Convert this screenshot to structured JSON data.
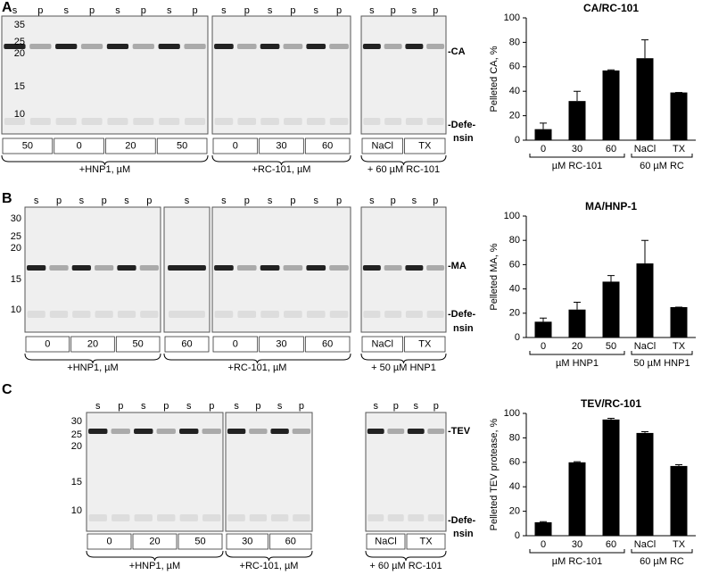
{
  "panels": [
    {
      "letter": "A",
      "mw": [
        "35",
        "25",
        "20",
        "15",
        "10"
      ],
      "gels": [
        {
          "lanes": [
            "s",
            "p",
            "s",
            "p",
            "s",
            "p",
            "s",
            "p"
          ],
          "conditions": [
            "50",
            "0",
            "20",
            "50"
          ]
        },
        {
          "lanes": [
            "s",
            "p",
            "s",
            "p",
            "s",
            "p"
          ],
          "conditions": [
            "0",
            "30",
            "60"
          ]
        },
        {
          "lanes": [
            "s",
            "p",
            "s",
            "p"
          ],
          "conditions": [
            "NaCl",
            "TX"
          ]
        }
      ],
      "groups": [
        "+HNP1, µM",
        "+RC-101, µM",
        "+ 60 µM RC-101"
      ],
      "bands": [
        "-CA",
        "-Defe-",
        "nsin"
      ]
    },
    {
      "letter": "B",
      "mw": [
        "30",
        "25",
        "20",
        "15",
        "10"
      ],
      "gels": [
        {
          "lanes": [
            "s",
            "p",
            "s",
            "p",
            "s",
            "p"
          ],
          "conditions": [
            "0",
            "20",
            "50"
          ]
        },
        {
          "lanes": [
            "s"
          ],
          "conditions": [
            "60"
          ]
        },
        {
          "lanes": [
            "s",
            "p",
            "s",
            "p",
            "s",
            "p"
          ],
          "conditions": [
            "0",
            "30",
            "60"
          ]
        },
        {
          "lanes": [
            "s",
            "p",
            "s",
            "p"
          ],
          "conditions": [
            "NaCl",
            "TX"
          ]
        }
      ],
      "groups": [
        "+HNP1, µM",
        "+RC-101, µM",
        "+ 50 µM HNP1"
      ],
      "bands": [
        "-MA",
        "-Defe-",
        "nsin"
      ]
    },
    {
      "letter": "C",
      "mw": [
        "30",
        "25",
        "20",
        "15",
        "10"
      ],
      "gels": [
        {
          "lanes": [
            "s",
            "p",
            "s",
            "p",
            "s",
            "p"
          ],
          "conditions": [
            "0",
            "20",
            "50"
          ]
        },
        {
          "lanes": [
            "s",
            "p",
            "s",
            "p"
          ],
          "conditions": [
            "30",
            "60"
          ]
        },
        {
          "lanes": [
            "s",
            "p",
            "s",
            "p"
          ],
          "conditions": [
            "NaCl",
            "TX"
          ]
        }
      ],
      "groups": [
        "+HNP1, µM",
        "+RC-101, µM",
        "+ 60 µM RC-101"
      ],
      "bands": [
        "-TEV",
        "-Defe-",
        "nsin"
      ]
    }
  ],
  "chart_data": [
    {
      "type": "bar",
      "title": "CA/RC-101",
      "y_label": "Pelleted CA, %",
      "categories": [
        "0",
        "30",
        "60",
        "NaCl",
        "TX"
      ],
      "values": [
        9,
        32,
        57,
        67,
        39
      ],
      "errors": [
        5,
        8,
        0.5,
        15,
        0
      ],
      "groups": [
        "µM RC-101",
        "60 µM RC"
      ],
      "color": "#000000",
      "ylim": [
        0,
        100
      ],
      "yticks": [
        0,
        20,
        40,
        60,
        80,
        100
      ]
    },
    {
      "type": "bar",
      "title": "MA/HNP-1",
      "y_label": "Pelleted MA, %",
      "categories": [
        "0",
        "20",
        "50",
        "NaCl",
        "TX"
      ],
      "values": [
        13,
        23,
        46,
        61,
        25
      ],
      "errors": [
        3,
        6,
        5,
        19,
        0
      ],
      "groups": [
        "µM HNP1",
        "50 µM HNP1"
      ],
      "color": "#000000",
      "ylim": [
        0,
        100
      ],
      "yticks": [
        0,
        20,
        40,
        60,
        80,
        100
      ]
    },
    {
      "type": "bar",
      "title": "TEV/RC-101",
      "y_label": "Pelleted TEV protease, %",
      "categories": [
        "0",
        "30",
        "60",
        "NaCl",
        "TX"
      ],
      "values": [
        11,
        60,
        95,
        84,
        57
      ],
      "errors": [
        0.5,
        0.5,
        1,
        1,
        1
      ],
      "groups": [
        "µM RC-101",
        "60 µM RC"
      ],
      "color": "#000000",
      "ylim": [
        0,
        100
      ],
      "yticks": [
        0,
        20,
        40,
        60,
        80,
        100
      ]
    }
  ]
}
